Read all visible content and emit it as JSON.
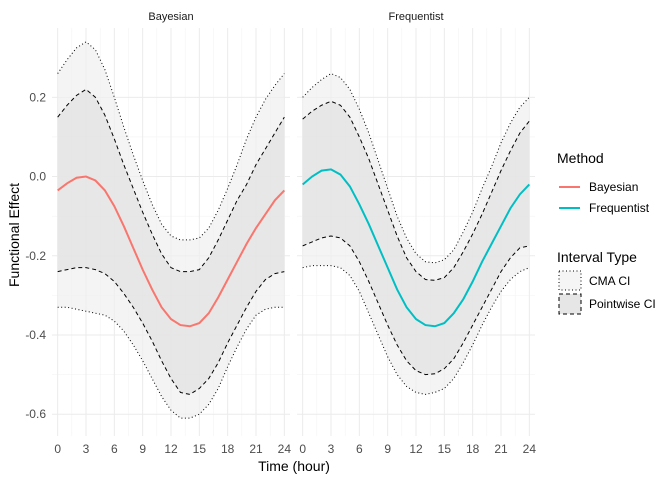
{
  "chart_data": {
    "type": "line",
    "facets": [
      "Bayesian",
      "Frequentist"
    ],
    "xlabel": "Time (hour)",
    "ylabel": "Functional Effect",
    "xlim": [
      -0.6,
      24.6
    ],
    "ylim": [
      -0.655,
      0.375
    ],
    "x_ticks": [
      0,
      3,
      6,
      9,
      12,
      15,
      18,
      21,
      24
    ],
    "x_tick_labels": [
      "0",
      "3",
      "6",
      "9",
      "12",
      "15",
      "18",
      "21",
      "24"
    ],
    "y_ticks": [
      0.2,
      0.0,
      -0.2,
      -0.4,
      -0.6
    ],
    "y_tick_labels": [
      "0.2",
      "0.0",
      "-0.2",
      "-0.4",
      "-0.6"
    ],
    "grid": true,
    "legend": {
      "position": "right",
      "method": {
        "title": "Method",
        "items": [
          {
            "label": "Bayesian",
            "color": "#F8766D"
          },
          {
            "label": "Frequentist",
            "color": "#00BFC4"
          }
        ]
      },
      "interval": {
        "title": "Interval Type",
        "items": [
          {
            "label": "CMA CI",
            "dash": "dotted"
          },
          {
            "label": "Pointwise CI",
            "dash": "dashed"
          }
        ]
      }
    },
    "colors": {
      "Bayesian": "#F8766D",
      "Frequentist": "#00BFC4"
    },
    "panels": [
      {
        "name": "Bayesian",
        "x": [
          0,
          1,
          2,
          3,
          4,
          5,
          6,
          7,
          8,
          9,
          10,
          11,
          12,
          13,
          14,
          15,
          16,
          17,
          18,
          19,
          20,
          21,
          22,
          23,
          24
        ],
        "estimate": [
          -0.035,
          -0.017,
          -0.003,
          0.0,
          -0.01,
          -0.035,
          -0.075,
          -0.125,
          -0.18,
          -0.235,
          -0.285,
          -0.33,
          -0.36,
          -0.375,
          -0.378,
          -0.37,
          -0.345,
          -0.305,
          -0.26,
          -0.215,
          -0.17,
          -0.13,
          -0.095,
          -0.06,
          -0.035
        ],
        "pointwise_upper": [
          0.15,
          0.18,
          0.205,
          0.22,
          0.2,
          0.155,
          0.095,
          0.03,
          -0.03,
          -0.09,
          -0.145,
          -0.195,
          -0.23,
          -0.24,
          -0.24,
          -0.235,
          -0.205,
          -0.16,
          -0.11,
          -0.06,
          -0.02,
          0.03,
          0.07,
          0.11,
          0.15
        ],
        "pointwise_lower": [
          -0.24,
          -0.235,
          -0.23,
          -0.23,
          -0.235,
          -0.245,
          -0.265,
          -0.295,
          -0.33,
          -0.37,
          -0.415,
          -0.465,
          -0.51,
          -0.545,
          -0.55,
          -0.535,
          -0.51,
          -0.47,
          -0.42,
          -0.375,
          -0.33,
          -0.29,
          -0.26,
          -0.245,
          -0.24
        ],
        "cma_upper": [
          0.26,
          0.295,
          0.325,
          0.34,
          0.32,
          0.27,
          0.2,
          0.125,
          0.055,
          -0.01,
          -0.07,
          -0.12,
          -0.15,
          -0.16,
          -0.16,
          -0.155,
          -0.13,
          -0.085,
          -0.03,
          0.03,
          0.095,
          0.15,
          0.195,
          0.23,
          0.26
        ],
        "cma_lower": [
          -0.33,
          -0.33,
          -0.335,
          -0.34,
          -0.345,
          -0.35,
          -0.365,
          -0.39,
          -0.425,
          -0.465,
          -0.51,
          -0.555,
          -0.59,
          -0.61,
          -0.61,
          -0.6,
          -0.575,
          -0.535,
          -0.48,
          -0.43,
          -0.385,
          -0.35,
          -0.335,
          -0.33,
          -0.33
        ]
      },
      {
        "name": "Frequentist",
        "x": [
          0,
          1,
          2,
          3,
          4,
          5,
          6,
          7,
          8,
          9,
          10,
          11,
          12,
          13,
          14,
          15,
          16,
          17,
          18,
          19,
          20,
          21,
          22,
          23,
          24
        ],
        "estimate": [
          -0.02,
          0.0,
          0.015,
          0.018,
          0.005,
          -0.025,
          -0.07,
          -0.12,
          -0.175,
          -0.23,
          -0.285,
          -0.33,
          -0.36,
          -0.375,
          -0.378,
          -0.37,
          -0.345,
          -0.31,
          -0.265,
          -0.215,
          -0.17,
          -0.125,
          -0.08,
          -0.045,
          -0.02
        ],
        "pointwise_upper": [
          0.145,
          0.165,
          0.18,
          0.19,
          0.18,
          0.15,
          0.1,
          0.045,
          -0.02,
          -0.085,
          -0.15,
          -0.205,
          -0.24,
          -0.26,
          -0.262,
          -0.255,
          -0.23,
          -0.19,
          -0.145,
          -0.095,
          -0.04,
          0.015,
          0.065,
          0.11,
          0.14
        ],
        "pointwise_lower": [
          -0.175,
          -0.165,
          -0.155,
          -0.15,
          -0.155,
          -0.175,
          -0.215,
          -0.265,
          -0.32,
          -0.375,
          -0.425,
          -0.465,
          -0.49,
          -0.5,
          -0.498,
          -0.485,
          -0.46,
          -0.42,
          -0.375,
          -0.33,
          -0.285,
          -0.24,
          -0.205,
          -0.18,
          -0.175
        ],
        "cma_upper": [
          0.2,
          0.225,
          0.245,
          0.26,
          0.25,
          0.22,
          0.17,
          0.11,
          0.04,
          -0.03,
          -0.1,
          -0.155,
          -0.195,
          -0.215,
          -0.218,
          -0.21,
          -0.185,
          -0.14,
          -0.09,
          -0.03,
          0.025,
          0.085,
          0.135,
          0.175,
          0.2
        ],
        "cma_lower": [
          -0.23,
          -0.225,
          -0.225,
          -0.225,
          -0.23,
          -0.25,
          -0.29,
          -0.345,
          -0.4,
          -0.455,
          -0.5,
          -0.53,
          -0.545,
          -0.55,
          -0.545,
          -0.535,
          -0.51,
          -0.47,
          -0.425,
          -0.375,
          -0.33,
          -0.29,
          -0.26,
          -0.24,
          -0.23
        ]
      }
    ]
  }
}
